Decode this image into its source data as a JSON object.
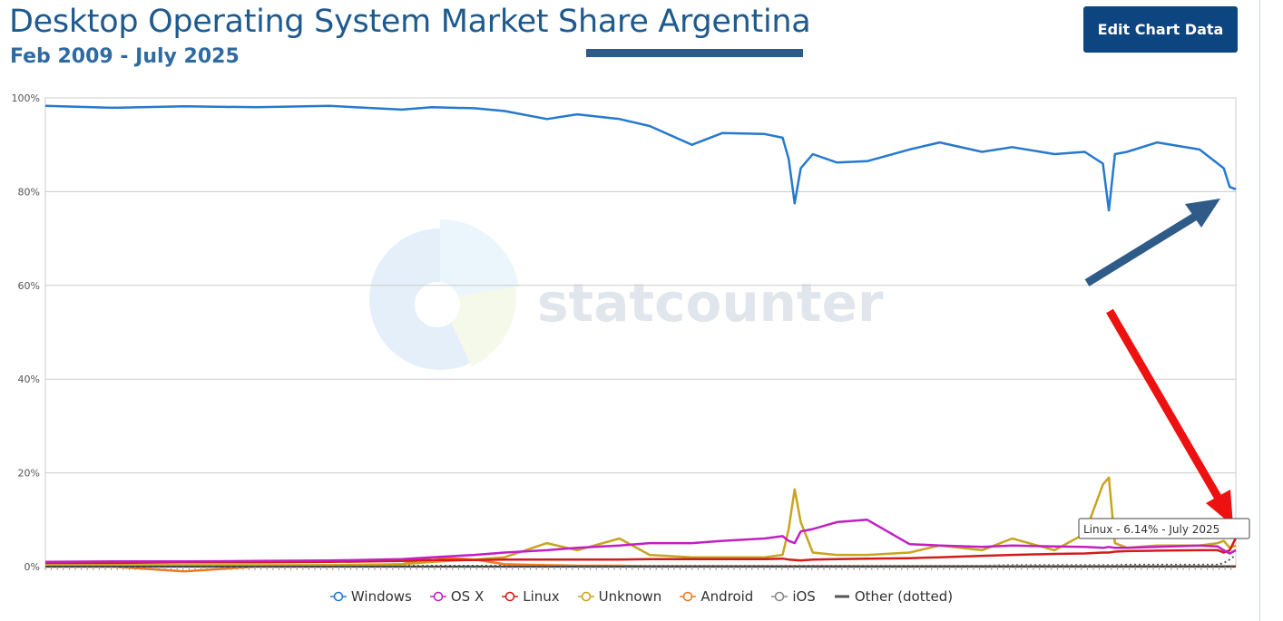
{
  "header": {
    "title": "Desktop Operating System Market Share Argentina",
    "subtitle": "Feb 2009 - July 2025",
    "edit_button_label": "Edit Chart Data"
  },
  "watermark": {
    "text": "statcounter"
  },
  "tooltip": {
    "text": "Linux - 6.14% - July 2025"
  },
  "colors": {
    "windows": "#2579cf",
    "osx": "#c21fc1",
    "linux": "#d31b1b",
    "unknown": "#c8a41f",
    "android": "#f0781e",
    "ios": "#888888",
    "other": "#555555",
    "annotation_blue_arrow": "#2f5b88",
    "annotation_red_arrow": "#ee1111",
    "button": "#0d4580",
    "title": "#1e5a8e"
  },
  "chart_data": {
    "type": "line",
    "ylim": [
      0,
      100
    ],
    "y_ticks": [
      "0%",
      "20%",
      "40%",
      "60%",
      "80%",
      "100%"
    ],
    "x_range": [
      "Feb 2009",
      "July 2025"
    ],
    "grid": true,
    "legend_position": "bottom",
    "x": [
      "2009-02",
      "2010-01",
      "2011-01",
      "2012-01",
      "2013-01",
      "2014-01",
      "2014-06",
      "2015-01",
      "2015-06",
      "2016-01",
      "2016-06",
      "2017-01",
      "2017-06",
      "2018-01",
      "2018-06",
      "2019-01",
      "2019-04",
      "2019-05",
      "2019-06",
      "2019-07",
      "2019-09",
      "2020-01",
      "2020-06",
      "2021-01",
      "2021-06",
      "2022-01",
      "2022-06",
      "2023-01",
      "2023-06",
      "2023-09",
      "2023-10",
      "2023-11",
      "2024-01",
      "2024-06",
      "2025-01",
      "2025-04",
      "2025-05",
      "2025-06",
      "2025-07"
    ],
    "series": [
      {
        "name": "Windows",
        "color_key": "windows",
        "dashed": false,
        "values": [
          98.3,
          97.9,
          98.2,
          98.0,
          98.3,
          97.5,
          98.0,
          97.8,
          97.2,
          95.5,
          96.5,
          95.5,
          94.0,
          90.0,
          92.5,
          92.3,
          91.5,
          87.0,
          77.5,
          85.0,
          88.0,
          86.2,
          86.5,
          89.0,
          90.5,
          88.5,
          89.5,
          88.0,
          88.5,
          86.0,
          76.0,
          88.0,
          88.5,
          90.5,
          89.0,
          86.0,
          85.0,
          81.0,
          80.5
        ]
      },
      {
        "name": "OS X",
        "color_key": "osx",
        "dashed": false,
        "values": [
          1.0,
          1.1,
          1.1,
          1.2,
          1.3,
          1.6,
          2.0,
          2.5,
          3.0,
          3.5,
          4.0,
          4.5,
          5.0,
          5.0,
          5.5,
          6.0,
          6.5,
          5.5,
          5.0,
          7.5,
          8.0,
          9.5,
          10.0,
          4.8,
          4.5,
          4.2,
          4.5,
          4.3,
          4.2,
          4.0,
          4.2,
          4.0,
          4.0,
          4.2,
          4.5,
          4.3,
          3.5,
          2.8,
          3.5
        ]
      },
      {
        "name": "Linux",
        "color_key": "linux",
        "dashed": false,
        "values": [
          0.8,
          0.8,
          0.9,
          0.9,
          1.0,
          1.2,
          1.4,
          1.4,
          1.5,
          1.5,
          1.5,
          1.5,
          1.6,
          1.6,
          1.6,
          1.6,
          1.7,
          1.5,
          1.4,
          1.3,
          1.5,
          1.6,
          1.7,
          1.8,
          2.0,
          2.3,
          2.5,
          2.7,
          2.8,
          3.0,
          3.0,
          3.2,
          3.3,
          3.4,
          3.5,
          3.5,
          3.0,
          3.5,
          6.14
        ]
      },
      {
        "name": "Unknown",
        "color_key": "unknown",
        "dashed": false,
        "values": [
          0.3,
          0.3,
          0.3,
          0.3,
          0.3,
          0.5,
          1.0,
          1.5,
          2.0,
          5.0,
          3.5,
          6.0,
          2.5,
          2.0,
          2.0,
          2.0,
          2.5,
          8.0,
          16.5,
          9.5,
          3.0,
          2.5,
          2.5,
          3.0,
          4.5,
          3.5,
          6.0,
          3.5,
          7.0,
          17.5,
          19.0,
          5.0,
          4.0,
          4.5,
          4.5,
          5.0,
          5.5,
          4.0,
          4.5
        ]
      },
      {
        "name": "Android",
        "color_key": "android",
        "dashed": false,
        "values": [
          0.0,
          0.0,
          -1.0,
          0.0,
          0.0,
          0.5,
          2.0,
          1.5,
          0.5,
          0.3,
          0.2,
          0.2,
          0.1,
          0.1,
          0.1,
          0.1,
          0.1,
          0.1,
          0.1,
          0.1,
          0.1,
          0.1,
          0.1,
          0.1,
          0.1,
          0.1,
          0.1,
          0.1,
          0.1,
          0.1,
          0.1,
          0.1,
          0.1,
          0.1,
          0.1,
          0.1,
          0.1,
          0.1,
          0.1
        ]
      },
      {
        "name": "iOS",
        "color_key": "ios",
        "dashed": false,
        "values": [
          0.0,
          0.0,
          0.0,
          0.0,
          0.0,
          0.0,
          0.0,
          0.0,
          0.0,
          0.0,
          0.0,
          0.0,
          0.0,
          0.0,
          0.0,
          0.0,
          0.0,
          0.0,
          0.0,
          0.0,
          0.0,
          0.0,
          0.0,
          0.0,
          0.0,
          0.0,
          0.0,
          0.0,
          0.0,
          0.0,
          0.0,
          0.0,
          0.0,
          0.0,
          0.0,
          0.0,
          0.0,
          0.0,
          0.0
        ]
      },
      {
        "name": "Other (dotted)",
        "color_key": "other",
        "dashed": true,
        "values": [
          0.2,
          0.2,
          0.2,
          0.2,
          0.2,
          0.2,
          0.2,
          0.2,
          0.2,
          0.2,
          0.2,
          0.2,
          0.2,
          0.2,
          0.2,
          0.2,
          0.2,
          0.2,
          0.2,
          0.2,
          0.2,
          0.2,
          0.2,
          0.2,
          0.2,
          0.2,
          0.3,
          0.3,
          0.3,
          0.3,
          0.3,
          0.3,
          0.4,
          0.4,
          0.4,
          0.4,
          0.8,
          1.5,
          2.5
        ]
      }
    ]
  }
}
